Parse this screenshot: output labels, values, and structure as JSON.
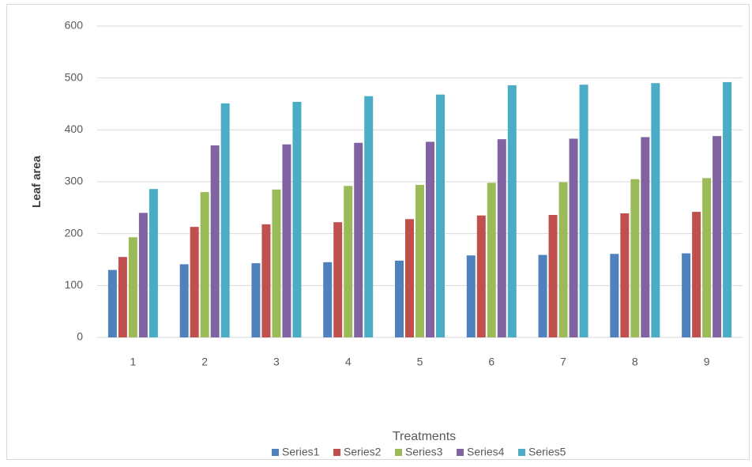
{
  "chart_data": {
    "type": "bar",
    "x_label": "Treatments",
    "y_label": "Leaf area",
    "categories": [
      "1",
      "2",
      "3",
      "4",
      "5",
      "6",
      "7",
      "8",
      "9"
    ],
    "series": [
      {
        "name": "Series1",
        "color": "#4f81bd",
        "values": [
          130,
          141,
          143,
          145,
          148,
          158,
          159,
          161,
          162
        ]
      },
      {
        "name": "Series2",
        "color": "#c0504d",
        "values": [
          155,
          213,
          218,
          222,
          228,
          235,
          236,
          239,
          242
        ]
      },
      {
        "name": "Series3",
        "color": "#9bbb59",
        "values": [
          193,
          280,
          285,
          292,
          294,
          298,
          299,
          305,
          307
        ]
      },
      {
        "name": "Series4",
        "color": "#8064a2",
        "values": [
          240,
          370,
          372,
          375,
          377,
          382,
          383,
          386,
          388
        ]
      },
      {
        "name": "Series5",
        "color": "#4bacc6",
        "values": [
          286,
          451,
          454,
          465,
          468,
          486,
          487,
          490,
          492
        ]
      }
    ],
    "ylim": [
      0,
      600
    ],
    "yticks": [
      0,
      100,
      200,
      300,
      400,
      500,
      600
    ],
    "grid": true,
    "legend": "bottom"
  }
}
